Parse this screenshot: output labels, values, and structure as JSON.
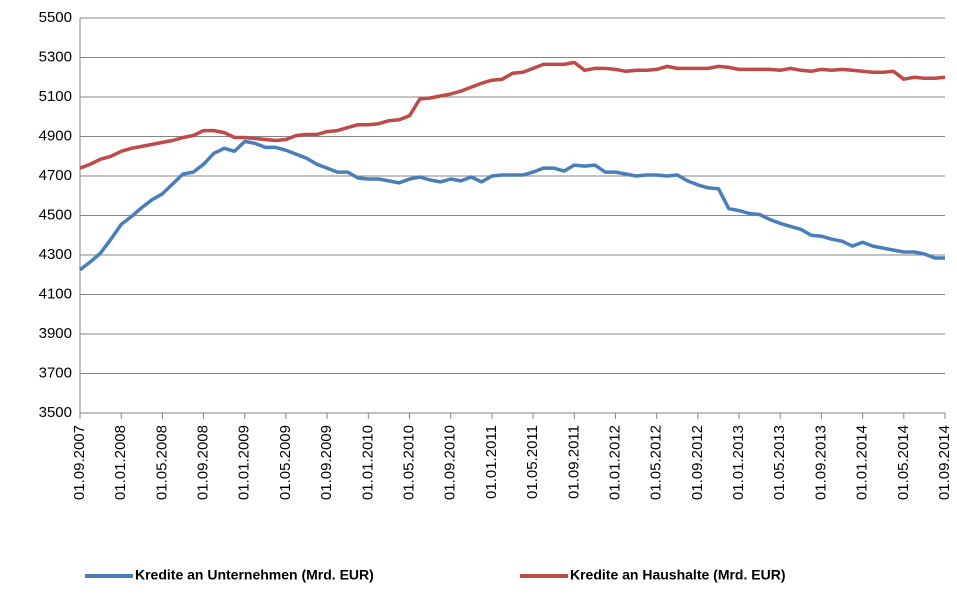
{
  "chart_data": {
    "type": "line",
    "categories": [
      "01.09.2007",
      null,
      null,
      null,
      "01.01.2008",
      null,
      null,
      null,
      "01.05.2008",
      null,
      null,
      null,
      "01.09.2008",
      null,
      null,
      null,
      "01.01.2009",
      null,
      null,
      null,
      "01.05.2009",
      null,
      null,
      null,
      "01.09.2009",
      null,
      null,
      null,
      "01.01.2010",
      null,
      null,
      null,
      "01.05.2010",
      null,
      null,
      null,
      "01.09.2010",
      null,
      null,
      null,
      "01.01.2011",
      null,
      null,
      null,
      "01.05.2011",
      null,
      null,
      null,
      "01.09.2011",
      null,
      null,
      null,
      "01.01.2012",
      null,
      null,
      null,
      "01.05.2012",
      null,
      null,
      null,
      "01.09.2012",
      null,
      null,
      null,
      "01.01.2013",
      null,
      null,
      null,
      "01.05.2013",
      null,
      null,
      null,
      "01.09.2013",
      null,
      null,
      null,
      "01.01.2014",
      null,
      null,
      null,
      "01.05.2014",
      null,
      null,
      null,
      "01.09.2014"
    ],
    "series": [
      {
        "name": "Kredite an Unternehmen (Mrd. EUR)",
        "color": "#4a7ebb",
        "values": [
          4225,
          4265,
          4310,
          4380,
          4455,
          4495,
          4540,
          4580,
          4610,
          4660,
          4710,
          4720,
          4760,
          4815,
          4840,
          4825,
          4875,
          4865,
          4845,
          4845,
          4830,
          4810,
          4790,
          4760,
          4740,
          4720,
          4720,
          4690,
          4685,
          4685,
          4675,
          4665,
          4685,
          4695,
          4680,
          4670,
          4685,
          4675,
          4695,
          4670,
          4700,
          4705,
          4705,
          4705,
          4720,
          4740,
          4740,
          4725,
          4755,
          4750,
          4755,
          4720,
          4720,
          4710,
          4700,
          4705,
          4705,
          4700,
          4705,
          4675,
          4655,
          4640,
          4635,
          4535,
          4525,
          4510,
          4505,
          4480,
          4460,
          4445,
          4430,
          4400,
          4395,
          4380,
          4370,
          4345,
          4365,
          4345,
          4335,
          4325,
          4315,
          4315,
          4305,
          4285,
          4285
        ]
      },
      {
        "name": "Kredite an Haushalte (Mrd. EUR)",
        "color": "#be4b48",
        "values": [
          4740,
          4760,
          4785,
          4800,
          4825,
          4840,
          4850,
          4860,
          4870,
          4880,
          4895,
          4905,
          4930,
          4930,
          4920,
          4895,
          4895,
          4890,
          4885,
          4880,
          4885,
          4905,
          4910,
          4910,
          4925,
          4930,
          4945,
          4960,
          4960,
          4965,
          4980,
          4985,
          5005,
          5090,
          5095,
          5105,
          5115,
          5130,
          5150,
          5170,
          5185,
          5190,
          5220,
          5225,
          5245,
          5265,
          5265,
          5265,
          5275,
          5235,
          5245,
          5245,
          5240,
          5230,
          5235,
          5235,
          5240,
          5255,
          5245,
          5245,
          5245,
          5245,
          5255,
          5250,
          5240,
          5240,
          5240,
          5240,
          5235,
          5245,
          5235,
          5230,
          5240,
          5235,
          5240,
          5235,
          5230,
          5225,
          5225,
          5230,
          5190,
          5200,
          5195,
          5195,
          5200
        ]
      }
    ],
    "ylim": [
      3500,
      5500
    ],
    "yticks": [
      3500,
      3700,
      3900,
      4100,
      4300,
      4500,
      4700,
      4900,
      5100,
      5300,
      5500
    ],
    "grid": true,
    "legend": "bottom"
  }
}
